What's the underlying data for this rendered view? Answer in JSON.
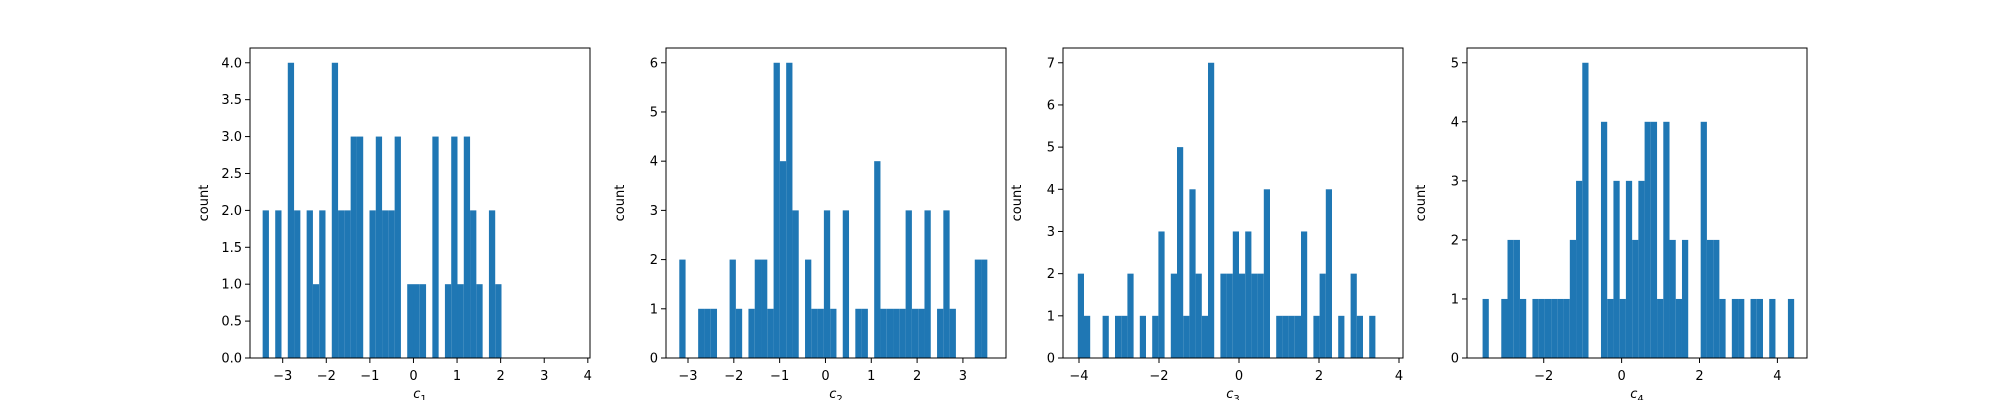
{
  "chart_data": [
    {
      "type": "bar",
      "title": "",
      "xlabel": "c",
      "xlabel_sub": "1",
      "ylabel": "count",
      "xlim": [
        -3.75,
        4.05
      ],
      "ylim": [
        0,
        4.2
      ],
      "xticks": [
        -3,
        -2,
        -1,
        0,
        1,
        2,
        3,
        4
      ],
      "yticks": [
        0,
        0.5,
        1.0,
        1.5,
        2.0,
        2.5,
        3.0,
        3.5,
        4.0
      ],
      "ytick_labels": [
        "0.0",
        "0.5",
        "1.0",
        "1.5",
        "2.0",
        "2.5",
        "3.0",
        "3.5",
        "4.0"
      ],
      "bin_start": -3.46,
      "bin_width": 0.1442,
      "counts": [
        2,
        0,
        2,
        0,
        4,
        2,
        0,
        2,
        1,
        2,
        0,
        4,
        2,
        2,
        3,
        3,
        0,
        2,
        3,
        2,
        2,
        3,
        0,
        1,
        1,
        1,
        0,
        3,
        0,
        1,
        3,
        1,
        3,
        2,
        1,
        0,
        2,
        1,
        0,
        0,
        0,
        0,
        0,
        0,
        0,
        0,
        0,
        0,
        0,
        0
      ]
    },
    {
      "type": "bar",
      "title": "",
      "xlabel": "c",
      "xlabel_sub": "2",
      "ylabel": "count",
      "xlim": [
        -3.48,
        3.94
      ],
      "ylim": [
        0,
        6.3
      ],
      "xticks": [
        -3,
        -2,
        -1,
        0,
        1,
        2,
        3
      ],
      "yticks": [
        0,
        1,
        2,
        3,
        4,
        5,
        6
      ],
      "ytick_labels": [
        "0",
        "1",
        "2",
        "3",
        "4",
        "5",
        "6"
      ],
      "bin_start": -3.19,
      "bin_width": 0.1372,
      "counts": [
        2,
        0,
        0,
        1,
        1,
        1,
        0,
        0,
        2,
        1,
        0,
        1,
        2,
        2,
        1,
        6,
        4,
        6,
        3,
        0,
        2,
        1,
        1,
        3,
        1,
        0,
        3,
        0,
        1,
        1,
        0,
        4,
        1,
        1,
        1,
        1,
        3,
        1,
        1,
        3,
        0,
        1,
        3,
        1,
        0,
        0,
        0,
        2,
        2,
        0
      ]
    },
    {
      "type": "bar",
      "title": "",
      "xlabel": "c",
      "xlabel_sub": "3",
      "ylabel": "count",
      "xlim": [
        -4.4,
        4.1
      ],
      "ylim": [
        0,
        7.35
      ],
      "xticks": [
        -4,
        -2,
        0,
        2,
        4
      ],
      "yticks": [
        0,
        1,
        2,
        3,
        4,
        5,
        6,
        7
      ],
      "ytick_labels": [
        "0",
        "1",
        "2",
        "3",
        "4",
        "5",
        "6",
        "7"
      ],
      "bin_start": -4.03,
      "bin_width": 0.155,
      "counts": [
        2,
        1,
        0,
        0,
        1,
        0,
        1,
        1,
        2,
        0,
        1,
        0,
        1,
        3,
        0,
        2,
        5,
        1,
        4,
        2,
        1,
        7,
        0,
        2,
        2,
        3,
        2,
        3,
        2,
        2,
        4,
        0,
        1,
        1,
        1,
        1,
        3,
        0,
        1,
        2,
        4,
        0,
        1,
        0,
        2,
        1,
        0,
        1,
        0,
        0
      ]
    },
    {
      "type": "bar",
      "title": "",
      "xlabel": "c",
      "xlabel_sub": "4",
      "ylabel": "count",
      "xlim": [
        -3.97,
        4.76
      ],
      "ylim": [
        0,
        5.25
      ],
      "xticks": [
        -2,
        0,
        2,
        4
      ],
      "yticks": [
        0,
        1,
        2,
        3,
        4,
        5
      ],
      "ytick_labels": [
        "0",
        "1",
        "2",
        "3",
        "4",
        "5"
      ],
      "bin_start": -3.57,
      "bin_width": 0.16,
      "counts": [
        1,
        0,
        0,
        1,
        2,
        2,
        1,
        0,
        1,
        1,
        1,
        1,
        1,
        1,
        2,
        3,
        5,
        0,
        0,
        4,
        1,
        3,
        1,
        3,
        2,
        3,
        4,
        4,
        1,
        4,
        2,
        1,
        2,
        0,
        0,
        4,
        2,
        2,
        1,
        0,
        1,
        1,
        0,
        1,
        1,
        0,
        1,
        0,
        0,
        1
      ]
    }
  ],
  "colors": {
    "bar": "#1f77b4",
    "axis": "#000000",
    "background": "#ffffff"
  }
}
